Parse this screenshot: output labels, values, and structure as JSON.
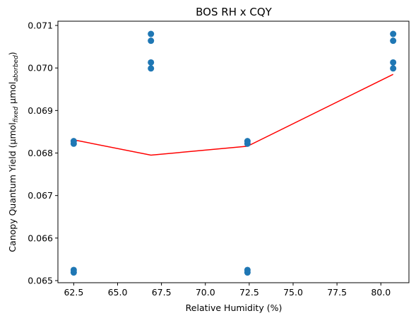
{
  "chart_data": {
    "type": "scatter",
    "title": "BOS RH x CQY",
    "xlabel": "Relative Humidity (%)",
    "ylabel": {
      "base": "Canopy Quantum Yield (μmol",
      "sub1": "fixed",
      "mid": " μmol",
      "sub2": "aborbed",
      "end": ")"
    },
    "xlim": [
      61.6,
      81.6
    ],
    "ylim": [
      0.06495,
      0.0711
    ],
    "x_ticks": [
      62.5,
      65.0,
      67.5,
      70.0,
      72.5,
      75.0,
      77.5,
      80.0
    ],
    "x_tick_labels": [
      "62.5",
      "65.0",
      "67.5",
      "70.0",
      "72.5",
      "75.0",
      "77.5",
      "80.0"
    ],
    "y_ticks": [
      0.065,
      0.066,
      0.067,
      0.068,
      0.069,
      0.07,
      0.071
    ],
    "y_tick_labels": [
      "0.065",
      "0.066",
      "0.067",
      "0.068",
      "0.069",
      "0.070",
      "0.071"
    ],
    "series": [
      {
        "kind": "scatter",
        "color": "#1f77b4",
        "points": [
          {
            "x": 62.5,
            "y": 0.06828
          },
          {
            "x": 62.5,
            "y": 0.06822
          },
          {
            "x": 62.5,
            "y": 0.06525
          },
          {
            "x": 62.5,
            "y": 0.06519
          },
          {
            "x": 66.9,
            "y": 0.0708
          },
          {
            "x": 66.9,
            "y": 0.07064
          },
          {
            "x": 66.9,
            "y": 0.07013
          },
          {
            "x": 66.9,
            "y": 0.06999
          },
          {
            "x": 72.4,
            "y": 0.06828
          },
          {
            "x": 72.4,
            "y": 0.06822
          },
          {
            "x": 72.4,
            "y": 0.06525
          },
          {
            "x": 72.4,
            "y": 0.06519
          },
          {
            "x": 80.7,
            "y": 0.0708
          },
          {
            "x": 80.7,
            "y": 0.07064
          },
          {
            "x": 80.7,
            "y": 0.07013
          },
          {
            "x": 80.7,
            "y": 0.06999
          }
        ]
      },
      {
        "kind": "line",
        "color": "#ff0000",
        "points": [
          {
            "x": 62.5,
            "y": 0.06831
          },
          {
            "x": 66.9,
            "y": 0.06795
          },
          {
            "x": 72.4,
            "y": 0.06816
          },
          {
            "x": 80.7,
            "y": 0.06985
          }
        ]
      }
    ],
    "grid": false,
    "legend": "none"
  }
}
